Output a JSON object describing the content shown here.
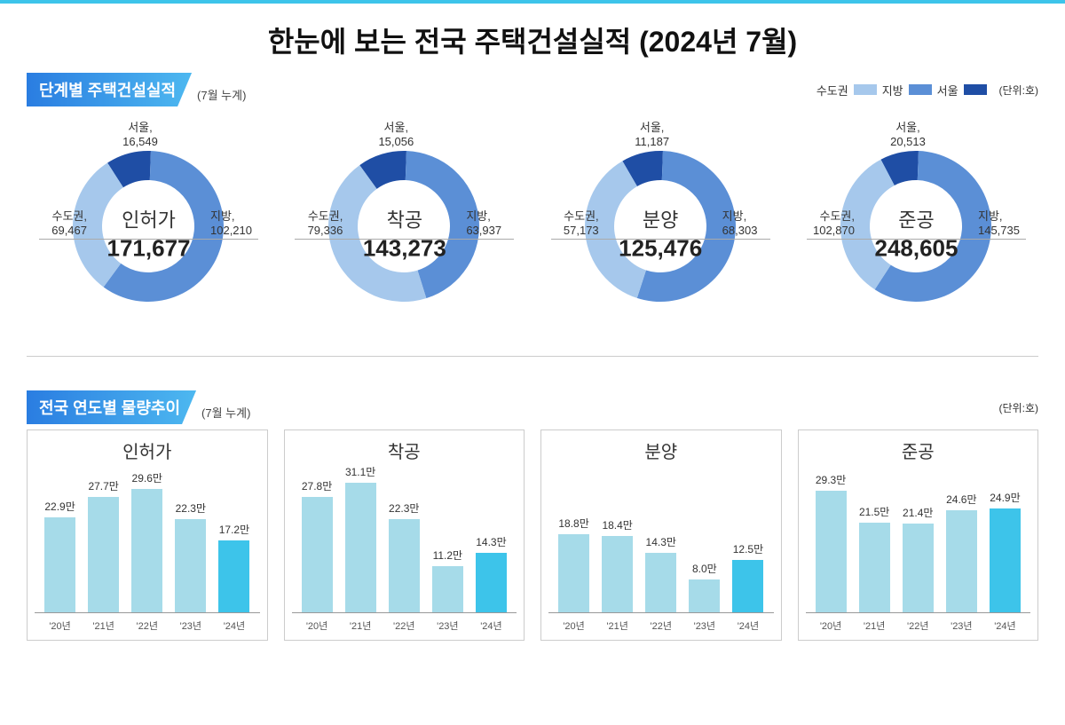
{
  "title": "한눈에 보는 전국 주택건설실적 (2024년 7월)",
  "section1": {
    "title": "단계별 주택건설실적",
    "sub": "(7월 누계)"
  },
  "section2": {
    "title": "전국 연도별 물량추이",
    "sub": "(7월 누계)"
  },
  "legend": {
    "metro": "수도권",
    "rural": "지방",
    "seoul": "서울",
    "unit": "(단위:호)"
  },
  "colors": {
    "metro": "#a6c8ec",
    "rural": "#5b8fd6",
    "seoul": "#1f4ea5",
    "bar_past": "#a6dbe9",
    "bar_current": "#3dc4ea",
    "bar_border": "#cccccc"
  },
  "donuts": [
    {
      "name": "인허가",
      "total": "171,677",
      "total_val": 171677,
      "metro": {
        "label": "수도권,",
        "value": "69,467",
        "val": 69467
      },
      "rural": {
        "label": "지방,",
        "value": "102,210",
        "val": 102210
      },
      "seoul": {
        "label": "서울,",
        "value": "16,549",
        "val": 16549
      }
    },
    {
      "name": "착공",
      "total": "143,273",
      "total_val": 143273,
      "metro": {
        "label": "수도권,",
        "value": "79,336",
        "val": 79336
      },
      "rural": {
        "label": "지방,",
        "value": "63,937",
        "val": 63937
      },
      "seoul": {
        "label": "서울,",
        "value": "15,056",
        "val": 15056
      }
    },
    {
      "name": "분양",
      "total": "125,476",
      "total_val": 125476,
      "metro": {
        "label": "수도권,",
        "value": "57,173",
        "val": 57173
      },
      "rural": {
        "label": "지방,",
        "value": "68,303",
        "val": 68303
      },
      "seoul": {
        "label": "서울,",
        "value": "11,187",
        "val": 11187
      }
    },
    {
      "name": "준공",
      "total": "248,605",
      "total_val": 248605,
      "metro": {
        "label": "수도권,",
        "value": "102,870",
        "val": 102870
      },
      "rural": {
        "label": "지방,",
        "value": "145,735",
        "val": 145735
      },
      "seoul": {
        "label": "서울,",
        "value": "20,513",
        "val": 20513
      }
    }
  ],
  "bar_charts": {
    "years": [
      "'20년",
      "'21년",
      "'22년",
      "'23년",
      "'24년"
    ],
    "ymax": 32,
    "current_index": 4,
    "panels": [
      {
        "title": "인허가",
        "values": [
          22.9,
          27.7,
          29.6,
          22.3,
          17.2
        ],
        "labels": [
          "22.9만",
          "27.7만",
          "29.6만",
          "22.3만",
          "17.2만"
        ]
      },
      {
        "title": "착공",
        "values": [
          27.8,
          31.1,
          22.3,
          11.2,
          14.3
        ],
        "labels": [
          "27.8만",
          "31.1만",
          "22.3만",
          "11.2만",
          "14.3만"
        ]
      },
      {
        "title": "분양",
        "values": [
          18.8,
          18.4,
          14.3,
          8.0,
          12.5
        ],
        "labels": [
          "18.8만",
          "18.4만",
          "14.3만",
          "8.0만",
          "12.5만"
        ]
      },
      {
        "title": "준공",
        "values": [
          29.3,
          21.5,
          21.4,
          24.6,
          24.9
        ],
        "labels": [
          "29.3만",
          "21.5만",
          "21.4만",
          "24.6만",
          "24.9만"
        ]
      }
    ]
  }
}
